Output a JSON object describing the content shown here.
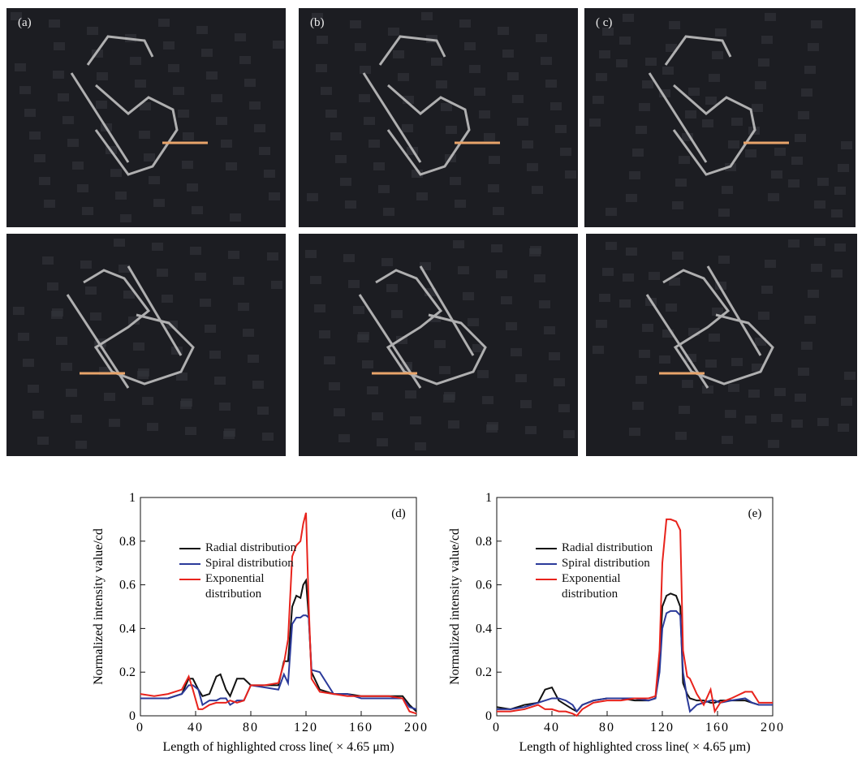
{
  "panels": {
    "labels": [
      "(a)",
      "(b)",
      "( c)"
    ]
  },
  "chart_data": [
    {
      "type": "line",
      "panel_label": "(d)",
      "x_label": "Length of highlighted cross line( × 4.65 μm)",
      "y_label": "Normalized intensity value/cd",
      "xlim": [
        0,
        200
      ],
      "xticks": [
        0,
        40,
        80,
        120,
        160,
        200
      ],
      "ylim": [
        0,
        1
      ],
      "yticks": [
        0,
        0.2,
        0.4,
        0.6,
        0.8,
        1
      ],
      "x": [
        0,
        10,
        20,
        30,
        35,
        38,
        42,
        45,
        50,
        55,
        58,
        62,
        65,
        70,
        75,
        80,
        90,
        100,
        104,
        107,
        110,
        113,
        116,
        118,
        120,
        122,
        124,
        130,
        140,
        150,
        160,
        170,
        180,
        190,
        195,
        200
      ],
      "series": [
        {
          "name": "Radial distribution",
          "color": "#111111",
          "values": [
            0.08,
            0.08,
            0.08,
            0.1,
            0.17,
            0.17,
            0.12,
            0.09,
            0.1,
            0.18,
            0.19,
            0.12,
            0.09,
            0.17,
            0.17,
            0.14,
            0.14,
            0.14,
            0.25,
            0.25,
            0.5,
            0.55,
            0.54,
            0.6,
            0.62,
            0.45,
            0.2,
            0.12,
            0.1,
            0.1,
            0.09,
            0.09,
            0.09,
            0.09,
            0.05,
            0.02
          ]
        },
        {
          "name": "Spiral distribution",
          "color": "#2b3a9a",
          "values": [
            0.08,
            0.08,
            0.08,
            0.1,
            0.14,
            0.14,
            0.12,
            0.05,
            0.07,
            0.07,
            0.08,
            0.08,
            0.05,
            0.07,
            0.07,
            0.14,
            0.13,
            0.12,
            0.19,
            0.15,
            0.42,
            0.45,
            0.45,
            0.46,
            0.46,
            0.45,
            0.21,
            0.2,
            0.1,
            0.1,
            0.08,
            0.08,
            0.08,
            0.08,
            0.04,
            0.03
          ]
        },
        {
          "name": "Exponential distribution",
          "color": "#e8231c",
          "values": [
            0.1,
            0.09,
            0.1,
            0.12,
            0.18,
            0.12,
            0.03,
            0.03,
            0.05,
            0.06,
            0.06,
            0.06,
            0.07,
            0.06,
            0.07,
            0.14,
            0.14,
            0.15,
            0.24,
            0.35,
            0.73,
            0.78,
            0.8,
            0.88,
            0.93,
            0.5,
            0.17,
            0.11,
            0.1,
            0.09,
            0.09,
            0.09,
            0.09,
            0.08,
            0.02,
            0.01
          ]
        }
      ]
    },
    {
      "type": "line",
      "panel_label": "(e)",
      "x_label": "Length of highlighted cross line( × 4.65 μm)",
      "y_label": "Normalized intensity value/cd",
      "xlim": [
        0,
        200
      ],
      "xticks": [
        0,
        40,
        80,
        120,
        160,
        200
      ],
      "ylim": [
        0,
        1
      ],
      "yticks": [
        0,
        0.2,
        0.4,
        0.6,
        0.8,
        1
      ],
      "x": [
        0,
        10,
        20,
        30,
        35,
        40,
        45,
        50,
        55,
        58,
        62,
        70,
        80,
        90,
        100,
        110,
        115,
        118,
        120,
        123,
        126,
        130,
        133,
        135,
        138,
        140,
        145,
        150,
        155,
        158,
        162,
        170,
        180,
        185,
        190,
        200
      ],
      "series": [
        {
          "name": "Radial distribution",
          "color": "#111111",
          "values": [
            0.04,
            0.03,
            0.05,
            0.06,
            0.12,
            0.13,
            0.07,
            0.05,
            0.03,
            0.02,
            0.05,
            0.07,
            0.08,
            0.08,
            0.07,
            0.07,
            0.08,
            0.25,
            0.5,
            0.55,
            0.56,
            0.55,
            0.5,
            0.15,
            0.1,
            0.08,
            0.07,
            0.07,
            0.06,
            0.06,
            0.07,
            0.07,
            0.07,
            0.06,
            0.05,
            0.05
          ]
        },
        {
          "name": "Spiral distribution",
          "color": "#2b3a9a",
          "values": [
            0.03,
            0.03,
            0.04,
            0.06,
            0.07,
            0.08,
            0.08,
            0.07,
            0.05,
            0.02,
            0.05,
            0.07,
            0.08,
            0.08,
            0.08,
            0.07,
            0.08,
            0.2,
            0.4,
            0.47,
            0.48,
            0.48,
            0.46,
            0.2,
            0.08,
            0.02,
            0.05,
            0.06,
            0.07,
            0.07,
            0.06,
            0.07,
            0.08,
            0.06,
            0.05,
            0.05
          ]
        },
        {
          "name": "Exponential distribution",
          "color": "#e8231c",
          "values": [
            0.02,
            0.02,
            0.03,
            0.05,
            0.03,
            0.03,
            0.02,
            0.02,
            0.01,
            0.0,
            0.03,
            0.06,
            0.07,
            0.07,
            0.08,
            0.08,
            0.09,
            0.3,
            0.7,
            0.9,
            0.9,
            0.89,
            0.85,
            0.3,
            0.18,
            0.17,
            0.1,
            0.05,
            0.12,
            0.02,
            0.06,
            0.08,
            0.11,
            0.11,
            0.06,
            0.06
          ]
        }
      ]
    }
  ]
}
